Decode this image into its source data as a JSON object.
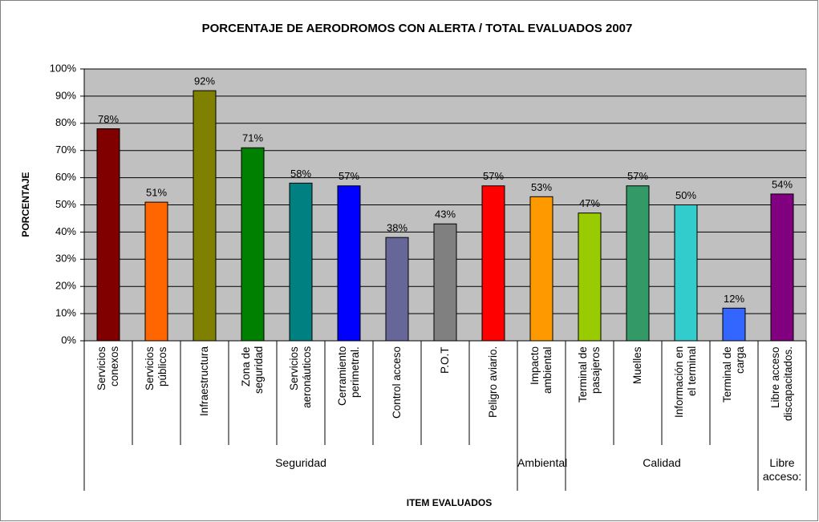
{
  "chart_data": {
    "type": "bar",
    "title": "PORCENTAJE DE AERODROMOS CON ALERTA / TOTAL EVALUADOS 2007",
    "ylabel": "PORCENTAJE",
    "xlabel": "ITEM EVALUADOS",
    "categories": [
      "Servicios conexos",
      "Servicios públicos",
      "Infraestructura",
      "Zona de seguridad",
      "Servicios aeronáuticos",
      "Cerramiento perimetral.",
      "Control acceso",
      "P.O.T",
      "Peligro aviario.",
      "Impacto ambiental",
      "Terminal de pasajeros",
      "Muelles",
      "Información en el terminal",
      "Terminal de carga",
      "Libre acceso discapacitados."
    ],
    "values": [
      78,
      51,
      92,
      71,
      58,
      57,
      38,
      43,
      57,
      53,
      47,
      57,
      50,
      12,
      54
    ],
    "value_labels": [
      "78%",
      "51%",
      "92%",
      "71%",
      "58%",
      "57%",
      "38%",
      "43%",
      "57%",
      "53%",
      "47%",
      "57%",
      "50%",
      "12%",
      "54%"
    ],
    "colors": [
      "#800000",
      "#ff6600",
      "#808000",
      "#008000",
      "#008080",
      "#0000ff",
      "#666699",
      "#808080",
      "#ff0000",
      "#ff9900",
      "#99cc00",
      "#339966",
      "#33cccc",
      "#3366ff",
      "#800080"
    ],
    "groups": [
      {
        "name": "Seguridad",
        "span": 9
      },
      {
        "name": "Ambiental",
        "span": 1
      },
      {
        "name": "Calidad",
        "span": 4
      },
      {
        "name": "Libre acceso:",
        "span": 1
      }
    ],
    "ylim": [
      0,
      100
    ],
    "yticks": [
      {
        "value": 0,
        "label": "0%"
      },
      {
        "value": 10,
        "label": "10%"
      },
      {
        "value": 20,
        "label": "20%"
      },
      {
        "value": 30,
        "label": "30%"
      },
      {
        "value": 40,
        "label": "40%"
      },
      {
        "value": 50,
        "label": "50%"
      },
      {
        "value": 60,
        "label": "60%"
      },
      {
        "value": 70,
        "label": "70%"
      },
      {
        "value": 80,
        "label": "80%"
      },
      {
        "value": 90,
        "label": "90%"
      },
      {
        "value": 100,
        "label": "100%"
      }
    ],
    "grid": true,
    "plot_background": "#c0c0c0"
  }
}
